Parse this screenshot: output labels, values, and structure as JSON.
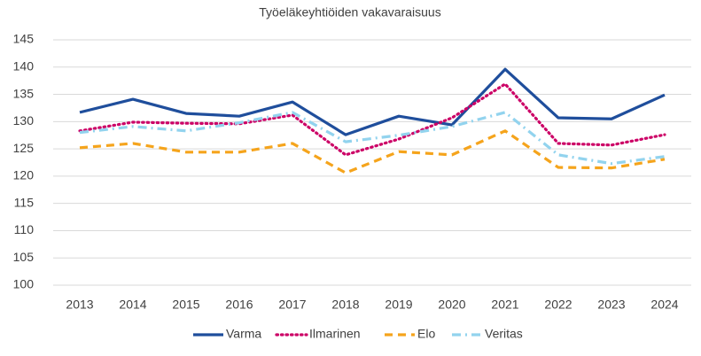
{
  "chart_data": {
    "type": "line",
    "title": "Työeläkeyhtiöiden vakavaraisuus",
    "categories": [
      "2013",
      "2014",
      "2015",
      "2016",
      "2017",
      "2018",
      "2019",
      "2020",
      "2021",
      "2022",
      "2023",
      "2024"
    ],
    "ylim": [
      100,
      145
    ],
    "yticks": [
      100,
      105,
      110,
      115,
      120,
      125,
      130,
      135,
      140,
      145
    ],
    "grid": true,
    "legend": "bottom",
    "series": [
      {
        "name": "Varma",
        "color": "#1f4e9c",
        "style": "solid",
        "values": [
          131.7,
          134.1,
          131.5,
          131.0,
          133.6,
          127.6,
          131.0,
          129.4,
          139.6,
          130.7,
          130.5,
          134.9
        ]
      },
      {
        "name": "Ilmarinen",
        "color": "#cc0066",
        "style": "dotted",
        "values": [
          128.3,
          129.9,
          129.7,
          129.6,
          131.2,
          123.9,
          126.8,
          130.7,
          136.9,
          126.0,
          125.7,
          127.6
        ]
      },
      {
        "name": "Elo",
        "color": "#f5a41c",
        "style": "dashed",
        "values": [
          125.2,
          126.0,
          124.4,
          124.4,
          126.0,
          120.6,
          124.5,
          123.9,
          128.3,
          121.6,
          121.5,
          123.1
        ]
      },
      {
        "name": "Veritas",
        "color": "#92d3ee",
        "style": "dashdot",
        "values": [
          128.0,
          129.1,
          128.3,
          129.8,
          131.7,
          126.3,
          127.5,
          129.1,
          131.7,
          123.9,
          122.3,
          123.6
        ]
      }
    ]
  }
}
